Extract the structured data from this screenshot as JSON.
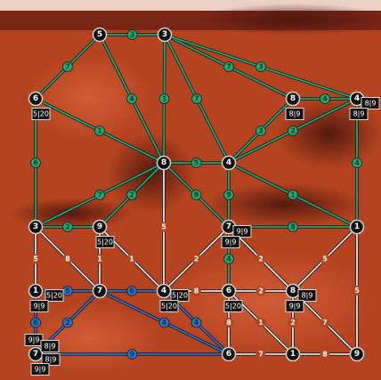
{
  "board": {
    "nodes": [
      {
        "label": "5"
      },
      {
        "label": "3"
      },
      {
        "label": "6",
        "boxes": [
          "5|20"
        ]
      },
      {
        "label": "8"
      },
      {
        "label": "4"
      },
      {
        "label": "8",
        "boxes": [
          "8|9"
        ]
      },
      {
        "label": "4",
        "boxes": [
          "8|9",
          "8|9"
        ]
      },
      {
        "label": "3"
      },
      {
        "label": "9",
        "boxes": [
          "5|20"
        ]
      },
      {
        "label": "7",
        "boxes": [
          "9|9",
          "9|9"
        ]
      },
      {
        "label": "1"
      },
      {
        "label": "1",
        "boxes": [
          "5|20",
          "9|9"
        ]
      },
      {
        "label": "7"
      },
      {
        "label": "4",
        "boxes": [
          "5|20",
          "5|20"
        ]
      },
      {
        "label": "6",
        "boxes": [
          "5|20"
        ]
      },
      {
        "label": "8",
        "boxes": [
          "8|9",
          "9|9"
        ]
      },
      {
        "label": "7",
        "boxes": [
          "9|9",
          "8|9",
          "8|9",
          "9|9"
        ]
      },
      {
        "label": "6"
      },
      {
        "label": "1"
      },
      {
        "label": "9"
      }
    ],
    "edges": [
      {
        "from": 0,
        "to": 1,
        "label": "3",
        "color": "#22a873"
      },
      {
        "from": 0,
        "to": 2,
        "label": "7",
        "color": "#22a873"
      },
      {
        "from": 0,
        "to": 3,
        "label": "4",
        "color": "#22a873"
      },
      {
        "from": 1,
        "to": 3,
        "label": "1",
        "color": "#22a873"
      },
      {
        "from": 1,
        "to": 4,
        "label": "7",
        "color": "#22a873"
      },
      {
        "from": 1,
        "to": 5,
        "label": "7",
        "color": "#22a873"
      },
      {
        "from": 1,
        "to": 6,
        "label": "3",
        "color": "#22a873"
      },
      {
        "from": 5,
        "to": 6,
        "label": "4",
        "color": "#22a873"
      },
      {
        "from": 2,
        "to": 3,
        "label": "1",
        "color": "#22a873"
      },
      {
        "from": 2,
        "to": 7,
        "label": "6",
        "color": "#22a873"
      },
      {
        "from": 3,
        "to": 4,
        "label": "5",
        "color": "#22a873"
      },
      {
        "from": 4,
        "to": 5,
        "label": "3",
        "color": "#22a873"
      },
      {
        "from": 4,
        "to": 6,
        "label": "2",
        "color": "#22a873"
      },
      {
        "from": 6,
        "to": 10,
        "label": "4",
        "color": "#22a873"
      },
      {
        "from": 4,
        "to": 9,
        "label": "9",
        "color": "#22a873"
      },
      {
        "from": 4,
        "to": 10,
        "label": "1",
        "color": "#22a873"
      },
      {
        "from": 3,
        "to": 9,
        "label": "9",
        "color": "#22a873"
      },
      {
        "from": 3,
        "to": 8,
        "label": "2",
        "color": "#22a873"
      },
      {
        "from": 3,
        "to": 7,
        "label": "7",
        "color": "#22a873"
      },
      {
        "from": 7,
        "to": 8,
        "label": "2",
        "color": "#22a873"
      },
      {
        "from": 9,
        "to": 10,
        "label": "8",
        "color": "#22a873"
      },
      {
        "from": 9,
        "to": 14,
        "label": "4",
        "color": "#22a873"
      },
      {
        "from": 3,
        "to": 13,
        "label": "5",
        "color": "#e6e0dc"
      },
      {
        "from": 7,
        "to": 11,
        "label": "5",
        "color": "#e6e0dc"
      },
      {
        "from": 7,
        "to": 12,
        "label": "8",
        "color": "#e6e0dc"
      },
      {
        "from": 8,
        "to": 12,
        "label": "1",
        "color": "#e6e0dc"
      },
      {
        "from": 8,
        "to": 13,
        "label": "1",
        "color": "#e6e0dc"
      },
      {
        "from": 9,
        "to": 13,
        "label": "2",
        "color": "#e6e0dc"
      },
      {
        "from": 9,
        "to": 15,
        "label": "2",
        "color": "#e6e0dc"
      },
      {
        "from": 10,
        "to": 15,
        "label": "5",
        "color": "#e6e0dc"
      },
      {
        "from": 10,
        "to": 19,
        "label": "5",
        "color": "#e6e0dc"
      },
      {
        "from": 13,
        "to": 14,
        "label": "8",
        "color": "#e6e0dc"
      },
      {
        "from": 14,
        "to": 15,
        "label": "2",
        "color": "#e6e0dc"
      },
      {
        "from": 14,
        "to": 17,
        "label": "8",
        "color": "#e6e0dc"
      },
      {
        "from": 14,
        "to": 18,
        "label": "1",
        "color": "#e6e0dc"
      },
      {
        "from": 15,
        "to": 18,
        "label": "2",
        "color": "#e6e0dc"
      },
      {
        "from": 15,
        "to": 19,
        "label": "7",
        "color": "#e6e0dc"
      },
      {
        "from": 17,
        "to": 18,
        "label": "7",
        "color": "#e6e0dc"
      },
      {
        "from": 18,
        "to": 19,
        "label": "8",
        "color": "#e6e0dc"
      },
      {
        "from": 11,
        "to": 12,
        "label": "5",
        "color": "#2f6fd0"
      },
      {
        "from": 12,
        "to": 13,
        "label": "6",
        "color": "#2f6fd0"
      },
      {
        "from": 11,
        "to": 16,
        "label": "6",
        "color": "#2f6fd0"
      },
      {
        "from": 12,
        "to": 16,
        "label": "2",
        "color": "#2f6fd0"
      },
      {
        "from": 12,
        "to": 17,
        "label": "4",
        "color": "#2f6fd0"
      },
      {
        "from": 13,
        "to": 17,
        "label": "4",
        "color": "#2f6fd0"
      },
      {
        "from": 16,
        "to": 17,
        "label": "9",
        "color": "#2f6fd0"
      }
    ]
  }
}
